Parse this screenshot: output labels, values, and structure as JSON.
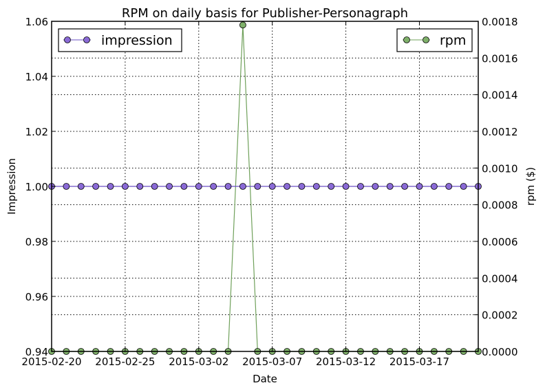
{
  "chart_data": {
    "type": "line",
    "title": "RPM on daily basis for Publisher-Personagraph",
    "xlabel": "Date",
    "ylabel_left": "Impression",
    "ylabel_right": "rpm ($)",
    "x_tick_labels": [
      "2015-02-20",
      "2015-02-25",
      "2015-03-02",
      "2015-03-07",
      "2015-03-12",
      "2015-03-17"
    ],
    "x_tick_values": [
      "2015-02-20",
      "2015-02-25",
      "2015-03-02",
      "2015-03-07",
      "2015-03-12",
      "2015-03-17"
    ],
    "xlim": [
      "2015-02-20",
      "2015-03-21"
    ],
    "ylim_left": [
      0.94,
      1.06
    ],
    "yticks_left": [
      "0.94",
      "0.96",
      "0.98",
      "1.00",
      "1.02",
      "1.04",
      "1.06"
    ],
    "ylim_right": [
      0,
      0.0018
    ],
    "yticks_right": [
      "0.0000",
      "0.0002",
      "0.0004",
      "0.0006",
      "0.0008",
      "0.0010",
      "0.0012",
      "0.0014",
      "0.0016",
      "0.0018"
    ],
    "grid": true,
    "dates": [
      "2015-02-20",
      "2015-02-21",
      "2015-02-22",
      "2015-02-23",
      "2015-02-24",
      "2015-02-25",
      "2015-02-26",
      "2015-02-27",
      "2015-02-28",
      "2015-03-01",
      "2015-03-02",
      "2015-03-03",
      "2015-03-04",
      "2015-03-05",
      "2015-03-06",
      "2015-03-07",
      "2015-03-08",
      "2015-03-09",
      "2015-03-10",
      "2015-03-11",
      "2015-03-12",
      "2015-03-13",
      "2015-03-14",
      "2015-03-15",
      "2015-03-16",
      "2015-03-17",
      "2015-03-18",
      "2015-03-19",
      "2015-03-20",
      "2015-03-21"
    ],
    "series": [
      {
        "name": "impression",
        "axis": "left",
        "color": "#8a6ad6",
        "line_color": "#6a4fc4",
        "legend_position": "top-left",
        "values": [
          1,
          1,
          1,
          1,
          1,
          1,
          1,
          1,
          1,
          1,
          1,
          1,
          1,
          1,
          1,
          1,
          1,
          1,
          1,
          1,
          1,
          1,
          1,
          1,
          1,
          1,
          1,
          1,
          1,
          1
        ]
      },
      {
        "name": "rpm",
        "axis": "right",
        "color": "#7fb06a",
        "line_color": "#6fa05a",
        "legend_position": "top-right",
        "values": [
          0,
          0,
          0,
          0,
          0,
          0,
          0,
          0,
          0,
          0,
          0,
          0,
          0,
          0.00178,
          0,
          0,
          0,
          0,
          0,
          0,
          0,
          0,
          0,
          0,
          0,
          0,
          0,
          0,
          0,
          0
        ]
      }
    ]
  }
}
